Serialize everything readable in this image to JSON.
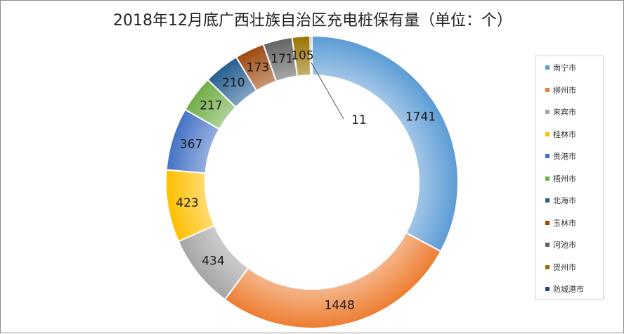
{
  "chart_data": {
    "type": "pie",
    "title": "2018年12月底广西壮族自治区充电桩保有量（单位：个）",
    "categories": [
      "南宁市",
      "柳州市",
      "来宾市",
      "桂林市",
      "贵港市",
      "梧州市",
      "北海市",
      "玉林市",
      "河池市",
      "贺州市",
      "防城港市"
    ],
    "values": [
      1741,
      1448,
      434,
      423,
      367,
      217,
      210,
      173,
      171,
      105,
      11
    ],
    "colors": [
      "#5b9bd5",
      "#ed7d31",
      "#a5a5a5",
      "#ffc000",
      "#4472c4",
      "#70ad47",
      "#255e91",
      "#9e480e",
      "#636363",
      "#997300",
      "#264478"
    ],
    "legend_position": "right"
  }
}
